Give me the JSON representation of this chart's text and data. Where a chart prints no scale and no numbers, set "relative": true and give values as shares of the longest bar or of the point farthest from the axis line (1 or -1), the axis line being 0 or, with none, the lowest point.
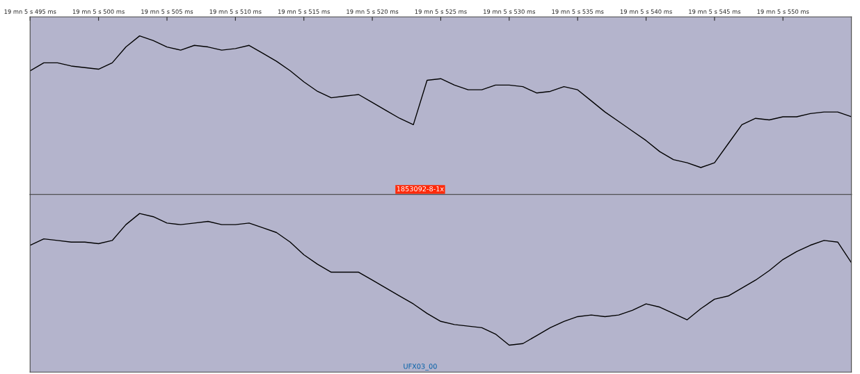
{
  "chart_data": [
    {
      "type": "line",
      "relative": true,
      "tick_labels": "x",
      "categories": [
        "19 mn 5 s 495 ms",
        null,
        null,
        null,
        null,
        "19 mn 5 s 500 ms",
        null,
        null,
        null,
        null,
        "19 mn 5 s 505 ms",
        null,
        null,
        null,
        null,
        "19 mn 5 s 510 ms",
        null,
        null,
        null,
        null,
        "19 mn 5 s 515 ms",
        null,
        null,
        null,
        null,
        "19 mn 5 s 520 ms",
        null,
        null,
        null,
        null,
        "19 mn 5 s 525 ms",
        null,
        null,
        null,
        null,
        "19 mn 5 s 530 ms",
        null,
        null,
        null,
        null,
        "19 mn 5 s 535 ms",
        null,
        null,
        null,
        null,
        "19 mn 5 s 540 ms",
        null,
        null,
        null,
        null,
        "19 mn 5 s 545 ms",
        null,
        null,
        null,
        null,
        "19 mn 5 s 550 ms",
        null,
        null,
        null,
        null,
        null
      ],
      "series": [
        {
          "color": "#000000",
          "values": [
            0.78,
            0.83,
            0.83,
            0.81,
            0.8,
            0.79,
            0.83,
            0.93,
            1.0,
            0.97,
            0.93,
            0.91,
            0.94,
            0.93,
            0.91,
            0.92,
            0.94,
            0.89,
            0.84,
            0.78,
            0.71,
            0.65,
            0.61,
            0.62,
            0.63,
            0.58,
            0.53,
            0.48,
            0.44,
            0.72,
            0.73,
            0.69,
            0.66,
            0.66,
            0.69,
            0.69,
            0.68,
            0.64,
            0.65,
            0.68,
            0.66,
            0.59,
            0.52,
            0.46,
            0.4,
            0.34,
            0.27,
            0.22,
            0.2,
            0.17,
            0.2,
            0.32,
            0.44,
            0.48,
            0.47,
            0.49,
            0.49,
            0.51,
            0.52,
            0.52,
            0.49
          ]
        }
      ],
      "annotations": [
        "1853092-8-1x"
      ]
    },
    {
      "type": "line",
      "relative": true,
      "tick_labels": false,
      "categories": [
        null,
        null,
        null,
        null,
        null,
        null,
        null,
        null,
        null,
        null,
        null,
        null,
        null,
        null,
        null,
        null,
        null,
        null,
        null,
        null,
        null,
        null,
        null,
        null,
        null,
        null,
        null,
        null,
        null,
        null,
        null,
        null,
        null,
        null,
        null,
        null,
        null,
        null,
        null,
        null,
        null,
        null,
        null,
        null,
        null,
        null,
        null,
        null,
        null,
        null,
        null,
        null,
        null,
        null,
        null,
        null,
        null,
        null,
        null,
        null,
        null
      ],
      "series": [
        {
          "color": "#000000",
          "values": [
            0.8,
            0.84,
            0.83,
            0.82,
            0.82,
            0.81,
            0.83,
            0.93,
            1.0,
            0.98,
            0.94,
            0.93,
            0.94,
            0.95,
            0.93,
            0.93,
            0.94,
            0.91,
            0.88,
            0.82,
            0.74,
            0.68,
            0.63,
            0.63,
            0.63,
            0.58,
            0.53,
            0.48,
            0.43,
            0.37,
            0.32,
            0.3,
            0.29,
            0.28,
            0.24,
            0.17,
            0.18,
            0.23,
            0.28,
            0.32,
            0.35,
            0.36,
            0.35,
            0.36,
            0.39,
            0.43,
            0.41,
            0.37,
            0.33,
            0.4,
            0.46,
            0.48,
            0.53,
            0.58,
            0.64,
            0.71,
            0.76,
            0.8,
            0.83,
            0.82,
            0.69
          ]
        }
      ],
      "annotations": [
        "UFX03_00"
      ]
    }
  ]
}
